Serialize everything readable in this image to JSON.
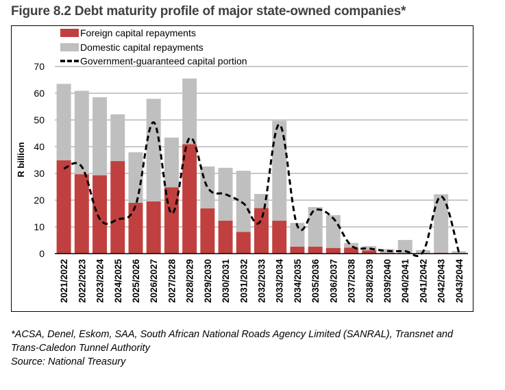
{
  "figure": {
    "title": "Figure 8.2 Debt maturity profile of major state-owned companies*"
  },
  "chart_data": {
    "type": "bar",
    "stacked": true,
    "title": "Figure 8.2 Debt maturity profile of major state-owned companies*",
    "xlabel": "",
    "ylabel": "R billion",
    "ylim": [
      0,
      70
    ],
    "yticks": [
      0,
      10,
      20,
      30,
      40,
      50,
      60,
      70
    ],
    "grid": true,
    "legend_position": "top-left",
    "categories": [
      "2021/2022",
      "2022/2023",
      "2023/2024",
      "2024/2025",
      "2025/2026",
      "2026/2027",
      "2027/2028",
      "2028/2029",
      "2029/2030",
      "2030/2031",
      "2031/2032",
      "2032/2033",
      "2033/2034",
      "2034/2035",
      "2035/2036",
      "2036/2037",
      "2037/2038",
      "2038/2039",
      "2039/2040",
      "2040/2041",
      "2041/2042",
      "2042/2043",
      "2043/2044"
    ],
    "series": [
      {
        "name": "Foreign capital repayments",
        "kind": "bar",
        "color": "#C0403F",
        "values": [
          34.9,
          29.7,
          29.3,
          34.6,
          19.0,
          19.5,
          24.8,
          40.9,
          16.9,
          12.3,
          8.1,
          17.0,
          12.3,
          2.6,
          2.6,
          2.1,
          2.2,
          1.2,
          0.3,
          0.2,
          0.2,
          0.3,
          0.2
        ]
      },
      {
        "name": "Domestic capital repayments",
        "kind": "bar",
        "color": "#BFBFBF",
        "values": [
          28.6,
          31.2,
          29.2,
          17.5,
          18.9,
          38.4,
          18.6,
          24.6,
          15.7,
          19.8,
          22.9,
          5.3,
          37.4,
          8.9,
          14.8,
          12.3,
          1.8,
          1.6,
          1.4,
          4.9,
          1.1,
          21.9,
          0.7
        ]
      },
      {
        "name": "Government-guaranteed capital portion",
        "kind": "line",
        "style": "dashed",
        "color": "#000000",
        "values": [
          31.8,
          32.5,
          13.0,
          12.8,
          18.1,
          49.1,
          15.0,
          43.2,
          24.8,
          22.2,
          18.8,
          12.8,
          48.3,
          10.4,
          16.4,
          13.2,
          3.0,
          1.9,
          1.0,
          0.9,
          0.7,
          21.4,
          0.3
        ]
      }
    ]
  },
  "footnote": {
    "line1": "*ACSA, Denel, Eskom, SAA, South African National Roads Agency Limited (SANRAL), Transnet and",
    "line2": "Trans-Caledon Tunnel Authority",
    "source": "Source: National Treasury"
  }
}
